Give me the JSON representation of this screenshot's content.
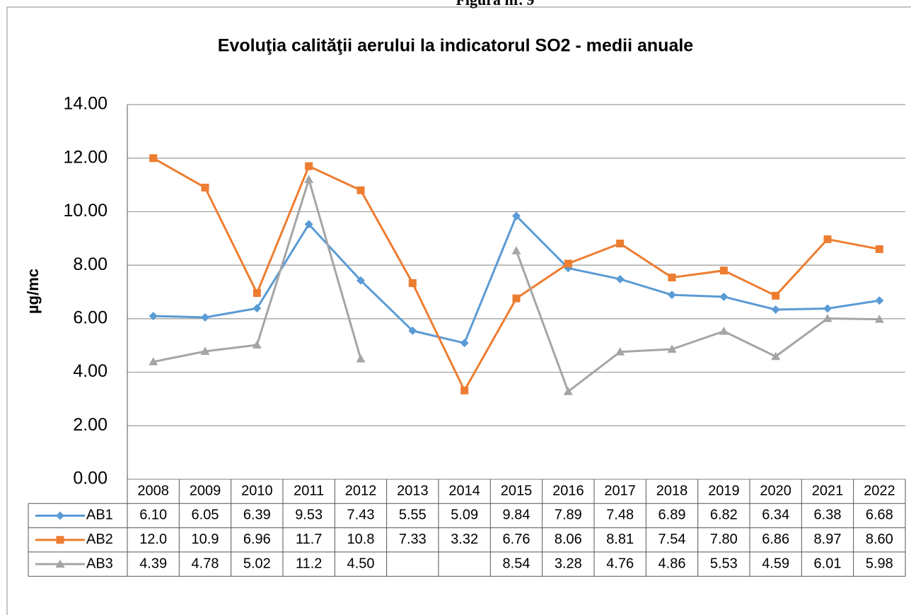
{
  "figure_label": "Figura nr. 9",
  "chart_data": {
    "type": "line",
    "title": "Evoluţia calităţii aerului la indicatorul SO2 - medii anuale",
    "ylabel": "µg/mc",
    "categories": [
      "2008",
      "2009",
      "2010",
      "2011",
      "2012",
      "2013",
      "2014",
      "2015",
      "2016",
      "2017",
      "2018",
      "2019",
      "2020",
      "2021",
      "2022"
    ],
    "series": [
      {
        "name": "AB1",
        "color": "#5b9bd5",
        "marker": "diamond",
        "values": [
          6.1,
          6.05,
          6.39,
          9.53,
          7.43,
          5.55,
          5.09,
          9.84,
          7.89,
          7.48,
          6.89,
          6.82,
          6.34,
          6.38,
          6.68
        ],
        "value_labels": [
          "6.10",
          "6.05",
          "6.39",
          "9.53",
          "7.43",
          "5.55",
          "5.09",
          "9.84",
          "7.89",
          "7.48",
          "6.89",
          "6.82",
          "6.34",
          "6.38",
          "6.68"
        ]
      },
      {
        "name": "AB2",
        "color": "#ed7d31",
        "marker": "square",
        "values": [
          12.0,
          10.9,
          6.96,
          11.7,
          10.8,
          7.33,
          3.32,
          6.76,
          8.06,
          8.81,
          7.54,
          7.8,
          6.86,
          8.97,
          8.6
        ],
        "value_labels": [
          "12.0",
          "10.9",
          "6.96",
          "11.7",
          "10.8",
          "7.33",
          "3.32",
          "6.76",
          "8.06",
          "8.81",
          "7.54",
          "7.80",
          "6.86",
          "8.97",
          "8.60"
        ]
      },
      {
        "name": "AB3",
        "color": "#a5a5a5",
        "marker": "triangle",
        "values": [
          4.39,
          4.78,
          5.02,
          11.2,
          4.5,
          null,
          null,
          8.54,
          3.28,
          4.76,
          4.86,
          5.53,
          4.59,
          6.01,
          5.98
        ],
        "value_labels": [
          "4.39",
          "4.78",
          "5.02",
          "11.2",
          "4.50",
          null,
          null,
          "8.54",
          "3.28",
          "4.76",
          "4.86",
          "5.53",
          "4.59",
          "6.01",
          "5.98"
        ]
      }
    ],
    "ylim": [
      0,
      14
    ],
    "yticks": [
      {
        "value": 0,
        "label": "0.00"
      },
      {
        "value": 2,
        "label": "2.00"
      },
      {
        "value": 4,
        "label": "4.00"
      },
      {
        "value": 6,
        "label": "6.00"
      },
      {
        "value": 8,
        "label": "8.00"
      },
      {
        "value": 10,
        "label": "10.00"
      },
      {
        "value": 12,
        "label": "12.00"
      },
      {
        "value": 14,
        "label": "14.00"
      }
    ],
    "grid": true
  }
}
